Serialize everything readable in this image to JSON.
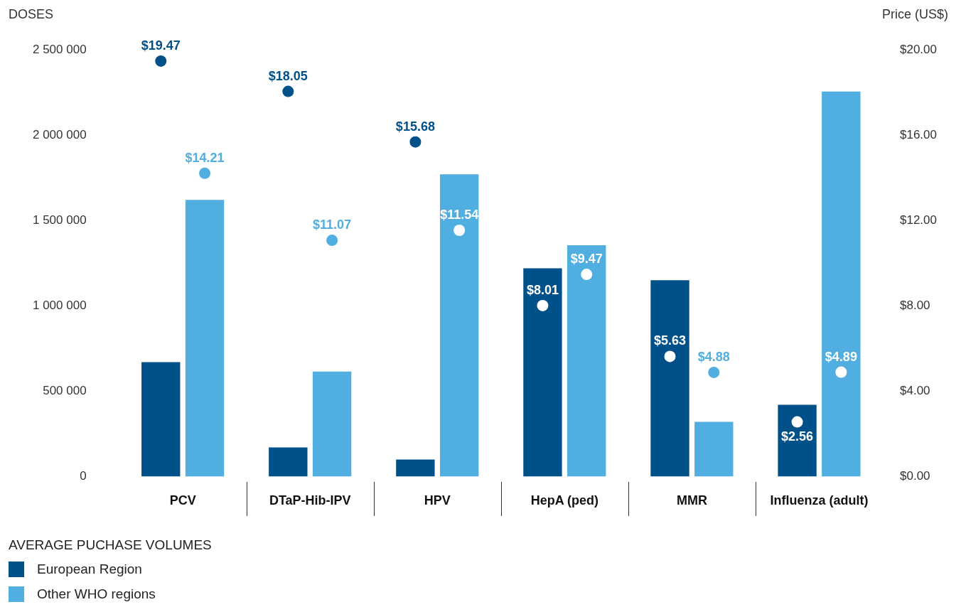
{
  "chart_data": {
    "type": "bar",
    "ylabel": "DOSES",
    "y2label": "Price (US$)",
    "legend_title": "AVERAGE PUCHASE VOLUMES",
    "legend": "bottom left",
    "grid": false,
    "categories": [
      "PCV",
      "DTaP-Hib-IPV",
      "HPV",
      "HepA (ped)",
      "MMR",
      "Influenza (adult)"
    ],
    "ylim": [
      0,
      2500000
    ],
    "yticks": [
      {
        "value": 0,
        "label": "0"
      },
      {
        "value": 500000,
        "label": "500 000"
      },
      {
        "value": 1000000,
        "label": "1 000 000"
      },
      {
        "value": 1500000,
        "label": "1 500 000"
      },
      {
        "value": 2000000,
        "label": "2 000 000"
      },
      {
        "value": 2500000,
        "label": "2 500 000"
      }
    ],
    "y2lim": [
      0,
      20
    ],
    "y2ticks": [
      {
        "value": 0,
        "label": "$0.00"
      },
      {
        "value": 4,
        "label": "$4.00"
      },
      {
        "value": 8,
        "label": "$8.00"
      },
      {
        "value": 12,
        "label": "$12.00"
      },
      {
        "value": 16,
        "label": "$16.00"
      },
      {
        "value": 20,
        "label": "$20.00"
      }
    ],
    "series": [
      {
        "name": "European Region",
        "color": "#00518a",
        "values": [
          670000,
          170000,
          100000,
          1220000,
          1150000,
          420000
        ]
      },
      {
        "name": "Other WHO regions",
        "color": "#50aee0",
        "values": [
          1620000,
          615000,
          1770000,
          1355000,
          320000,
          2255000
        ]
      },
      {
        "type": "scatter",
        "axis": "y2",
        "marker": "circle",
        "x": [
          "PCV",
          "DTaP-Hib-IPV",
          "HPV",
          "HepA (ped)",
          "MMR",
          "Influenza (adult)"
        ],
        "colors": [
          "#00518a",
          "#00518a",
          "#00518a",
          "#ffffff",
          "#ffffff",
          "#ffffff"
        ],
        "values": [
          19.47,
          18.05,
          15.68,
          8.01,
          5.63,
          2.56
        ],
        "value_labels": [
          "$19.47",
          "$18.05",
          "$15.68",
          "$8.01",
          "$5.63",
          "$2.56"
        ]
      },
      {
        "type": "scatter",
        "axis": "y2",
        "marker": "circle",
        "x": [
          "PCV",
          "DTaP-Hib-IPV",
          "HPV",
          "HepA (ped)",
          "MMR",
          "Influenza (adult)"
        ],
        "colors": [
          "#50aee0",
          "#50aee0",
          "#ffffff",
          "#ffffff",
          "#50aee0",
          "#ffffff"
        ],
        "values": [
          14.21,
          11.07,
          11.54,
          9.47,
          4.88,
          4.89
        ],
        "value_labels": [
          "$14.21",
          "$11.07",
          "$11.54",
          "$9.47",
          "$4.88",
          "$4.89"
        ]
      }
    ]
  }
}
